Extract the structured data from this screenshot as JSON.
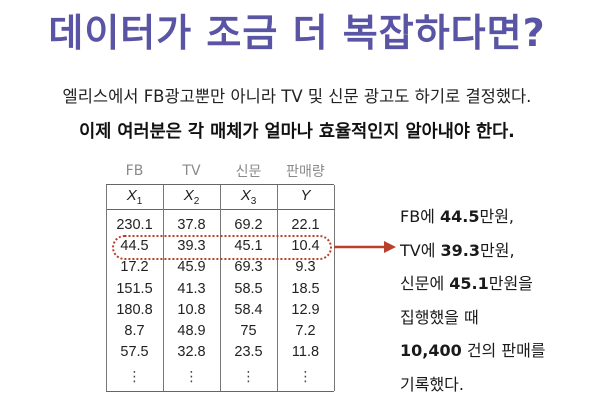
{
  "title": "데이터가 조금 더 복잡하다면?",
  "subtitle": "엘리스에서 FB광고뿐만 아니라 TV 및 신문 광고도 하기로 결정했다.",
  "question": "이제 여러분은 각 매체가 얼마나 효율적인지 알아내야 한다.",
  "table": {
    "headers": [
      "FB",
      "TV",
      "신문",
      "판매량"
    ],
    "variables": [
      {
        "base": "X",
        "sub": "1"
      },
      {
        "base": "X",
        "sub": "2"
      },
      {
        "base": "X",
        "sub": "3"
      },
      {
        "base": "Y",
        "sub": ""
      }
    ],
    "rows": [
      [
        "230.1",
        "37.8",
        "69.2",
        "22.1"
      ],
      [
        "44.5",
        "39.3",
        "45.1",
        "10.4"
      ],
      [
        "17.2",
        "45.9",
        "69.3",
        "9.3"
      ],
      [
        "151.5",
        "41.3",
        "58.5",
        "18.5"
      ],
      [
        "180.8",
        "10.8",
        "58.4",
        "12.9"
      ],
      [
        "8.7",
        "48.9",
        "75",
        "7.2"
      ],
      [
        "57.5",
        "32.8",
        "23.5",
        "11.8"
      ]
    ],
    "ellipsis": "⋮"
  },
  "explanation": {
    "l1_pre": "FB에 ",
    "l1_val": "44.5",
    "l1_post": "만원,",
    "l2_pre": "TV에 ",
    "l2_val": "39.3",
    "l2_post": "만원,",
    "l3_pre": "신문에 ",
    "l3_val": "45.1",
    "l3_post": "만원을",
    "l4": "집행했을 때",
    "l5_val": "10,400",
    "l5_post": " 건의 판매를",
    "l6": "기록했다."
  },
  "colors": {
    "title": "#5a54a4",
    "highlight": "#b8402c"
  }
}
